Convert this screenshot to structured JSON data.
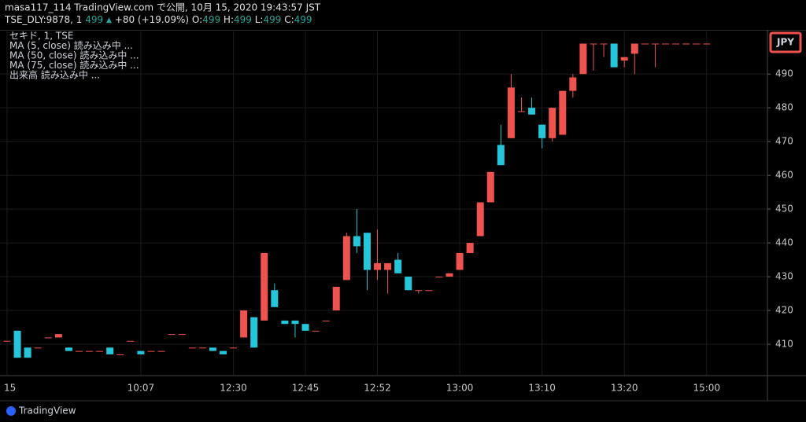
{
  "header": {
    "title": "masa117_114 TradingView.com で公開, 10月 15, 2020 19:43:57 JST",
    "symbol": "TSE_DLY:9878, 1",
    "price": "499",
    "arrow": "▲",
    "change": "+80 (+19.09%)",
    "ohlc": [
      {
        "label": "O:",
        "value": "499"
      },
      {
        "label": "H:",
        "value": "499"
      },
      {
        "label": "L:",
        "value": "499"
      },
      {
        "label": "C:",
        "value": "499"
      }
    ]
  },
  "legend": [
    "セキド, 1, TSE",
    "MA (5, close) 読み込み中 ...",
    "MA (50, close) 読み込み中 ...",
    "MA (75, close) 読み込み中 ...",
    "出来高 読み込み中 ..."
  ],
  "currency": "JPY",
  "footer": "TradingView",
  "chart_data": {
    "type": "candlestick",
    "categories": [
      "15",
      null,
      null,
      null,
      null,
      null,
      null,
      null,
      null,
      null,
      null,
      null,
      null,
      "10:07",
      null,
      null,
      null,
      null,
      null,
      null,
      null,
      null,
      "12:30",
      null,
      null,
      null,
      null,
      null,
      null,
      "12:45",
      null,
      null,
      null,
      null,
      null,
      null,
      "12:52",
      null,
      null,
      null,
      null,
      null,
      null,
      null,
      "13:00",
      null,
      null,
      null,
      null,
      null,
      null,
      null,
      "13:10",
      null,
      null,
      null,
      null,
      null,
      null,
      null,
      "13:20",
      null,
      null,
      null,
      null,
      null,
      null,
      null,
      "15:00"
    ],
    "open": [
      411,
      414,
      409,
      409,
      412,
      412,
      409,
      408,
      408,
      408,
      409,
      407,
      411,
      408,
      408,
      408,
      413,
      413,
      409,
      409,
      409,
      408,
      409,
      412,
      418,
      417,
      426,
      417,
      417,
      416,
      414,
      417,
      420,
      429,
      442,
      443,
      432,
      432,
      435,
      430,
      426,
      426,
      430,
      430,
      432,
      437,
      442,
      452,
      469,
      471,
      479,
      480,
      475,
      471,
      472,
      485,
      490,
      499,
      499,
      499,
      494,
      496,
      499,
      499,
      499,
      499,
      499,
      499,
      499
    ],
    "high": [
      411,
      414,
      409,
      409,
      412,
      413,
      409,
      408,
      408,
      408,
      409,
      407,
      411,
      408,
      408,
      408,
      413,
      413,
      409,
      409,
      409,
      408,
      409,
      420,
      418,
      437,
      428,
      417,
      417,
      416,
      414,
      417,
      427,
      443,
      450,
      443,
      444,
      434,
      437,
      430,
      426,
      426,
      430,
      431,
      437,
      440,
      452,
      461,
      475,
      490,
      483,
      483,
      475,
      480,
      485,
      490,
      499,
      499,
      499,
      499,
      495,
      499,
      499,
      499,
      499,
      499,
      499,
      499,
      499
    ],
    "low": [
      411,
      406,
      406,
      409,
      412,
      412,
      408,
      408,
      408,
      408,
      407,
      407,
      411,
      407,
      408,
      408,
      413,
      413,
      409,
      409,
      408,
      407,
      409,
      412,
      409,
      417,
      421,
      416,
      412,
      414,
      414,
      417,
      420,
      429,
      437,
      426,
      429,
      425,
      431,
      426,
      425,
      426,
      430,
      430,
      432,
      437,
      442,
      452,
      463,
      471,
      479,
      478,
      468,
      470,
      472,
      483,
      490,
      491,
      495,
      492,
      492,
      490,
      499,
      492,
      499,
      499,
      499,
      499,
      499
    ],
    "close": [
      411,
      406,
      406,
      409,
      412,
      413,
      408,
      408,
      408,
      408,
      407,
      407,
      411,
      407,
      408,
      408,
      413,
      413,
      409,
      409,
      408,
      407,
      409,
      420,
      409,
      437,
      421,
      416,
      416,
      414,
      414,
      417,
      427,
      442,
      439,
      432,
      434,
      434,
      431,
      426,
      426,
      426,
      430,
      431,
      437,
      440,
      452,
      461,
      463,
      486,
      479,
      478,
      471,
      480,
      485,
      489,
      499,
      499,
      499,
      492,
      495,
      499,
      499,
      499,
      499,
      499,
      499,
      499,
      499
    ],
    "up_color": "#ef5350",
    "down_color": "#26c6da",
    "ylim": [
      400.7,
      502.6
    ],
    "yticks": [
      410,
      420,
      430,
      440,
      450,
      460,
      470,
      480,
      490
    ],
    "grid": true
  }
}
